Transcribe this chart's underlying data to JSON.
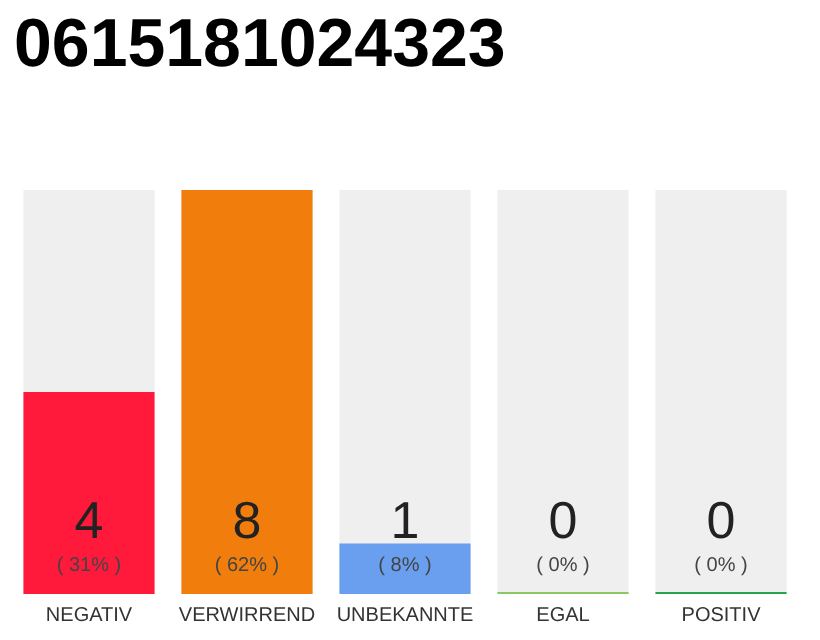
{
  "chart_data": {
    "type": "bar",
    "title": "0615181024323",
    "categories": [
      "NEGATIV",
      "VERWIRREND",
      "UNBEKANNTE",
      "EGAL",
      "POSITIV"
    ],
    "values": [
      4,
      8,
      1,
      0,
      0
    ],
    "colors": [
      "#ff1a3c",
      "#f07d0c",
      "#6a9ff0",
      "#88c860",
      "#22a84a"
    ],
    "value_labels": [
      "4\n( 31% )",
      "8\n( 62% )",
      "1\n( 8% )",
      "0\n( 0% )",
      "0\n( 0% )"
    ],
    "ylim": [
      0,
      8
    ]
  }
}
